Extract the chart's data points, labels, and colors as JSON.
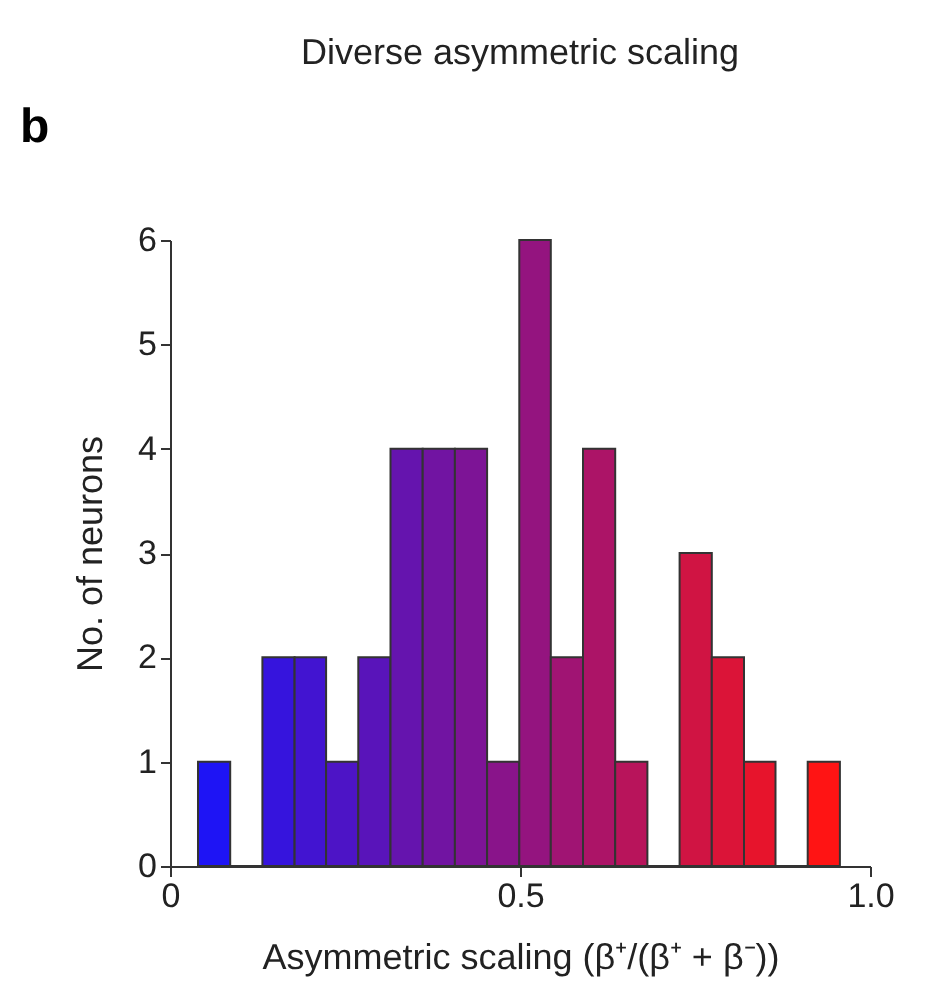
{
  "chart_data": {
    "type": "histogram",
    "title": "Diverse asymmetric scaling",
    "xlabel": "Asymmetric scaling (β⁺/(β⁺ + β⁻))",
    "ylabel": "No. of neurons",
    "annotations": [
      "b"
    ],
    "bins": [
      0.04,
      0.086,
      0.132,
      0.178,
      0.223,
      0.269,
      0.315,
      0.361,
      0.407,
      0.453,
      0.499,
      0.544,
      0.59,
      0.636,
      0.682,
      0.728,
      0.774,
      0.82,
      0.865,
      0.911,
      0.957
    ],
    "values": [
      1,
      0,
      2,
      2,
      1,
      2,
      4,
      4,
      4,
      1,
      6,
      2,
      4,
      1,
      0,
      3,
      2,
      1,
      0,
      1
    ],
    "colors": [
      "#1e14f5",
      "#2a14e9",
      "#3614dd",
      "#4214d1",
      "#4d14c6",
      "#5914ba",
      "#6514ae",
      "#7114a2",
      "#7d1496",
      "#89148a",
      "#94147f",
      "#a01473",
      "#ac1467",
      "#b8145b",
      "#c4144f",
      "#d01443",
      "#db1438",
      "#e7142c",
      "#f31420",
      "#ff1414"
    ],
    "xlim": [
      0,
      1
    ],
    "xticks": [
      0,
      0.5,
      {
        "value": 1,
        "label": "1.0"
      }
    ],
    "ylim": [
      0,
      6
    ],
    "yticks": [
      0,
      1,
      2,
      3,
      4,
      5,
      6
    ],
    "grid": false
  }
}
